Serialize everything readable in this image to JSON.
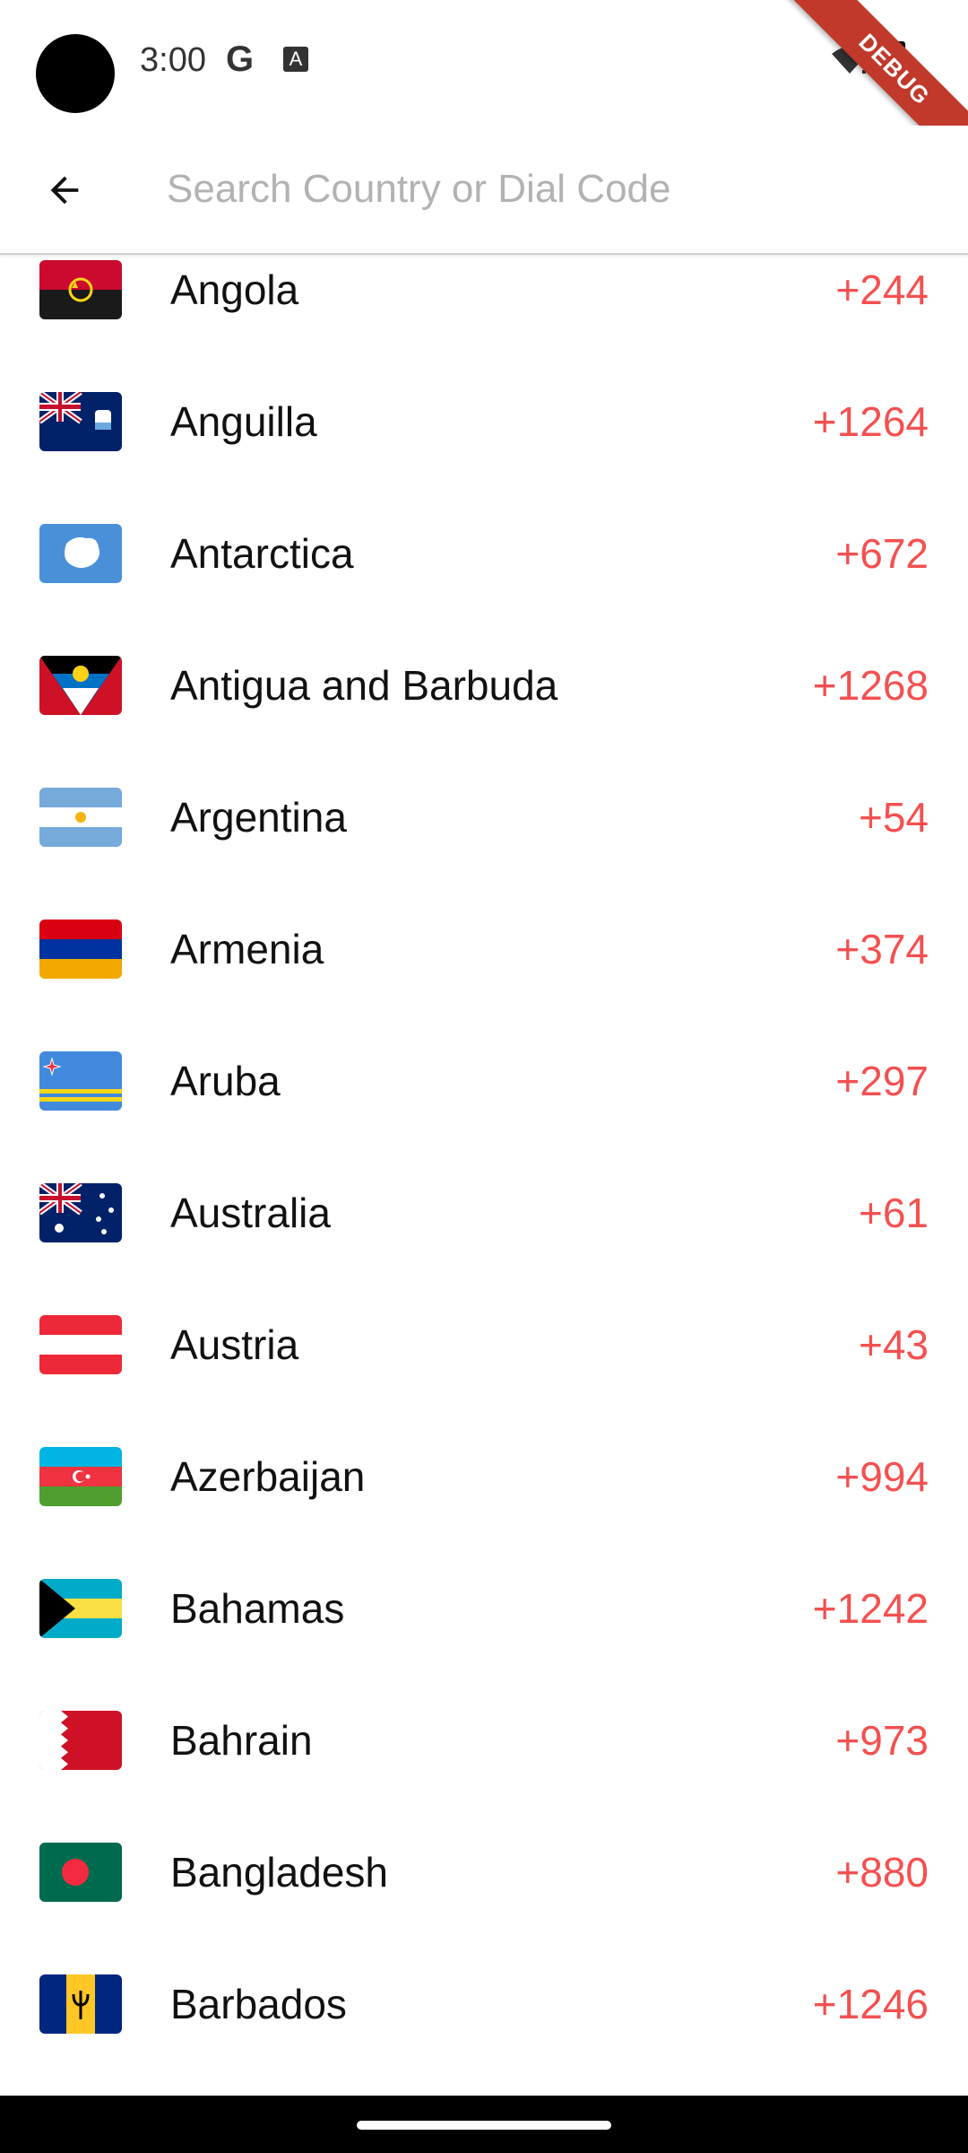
{
  "status_bar": {
    "time": "3:00",
    "icons": [
      "google-icon",
      "autofill-icon",
      "wifi-alert-icon",
      "battery-icon"
    ],
    "g_glyph": "G",
    "a_glyph": "A",
    "debug_label": "DEBUG"
  },
  "header": {
    "back_icon": "arrow-back-icon",
    "search_placeholder": "Search Country or Dial Code",
    "search_value": ""
  },
  "countries": [
    {
      "name": "Angola",
      "code": "+244",
      "flag": "angola"
    },
    {
      "name": "Anguilla",
      "code": "+1264",
      "flag": "anguilla"
    },
    {
      "name": "Antarctica",
      "code": "+672",
      "flag": "antarctica"
    },
    {
      "name": "Antigua and Barbuda",
      "code": "+1268",
      "flag": "antigua"
    },
    {
      "name": "Argentina",
      "code": "+54",
      "flag": "argentina"
    },
    {
      "name": "Armenia",
      "code": "+374",
      "flag": "armenia"
    },
    {
      "name": "Aruba",
      "code": "+297",
      "flag": "aruba"
    },
    {
      "name": "Australia",
      "code": "+61",
      "flag": "australia"
    },
    {
      "name": "Austria",
      "code": "+43",
      "flag": "austria"
    },
    {
      "name": "Azerbaijan",
      "code": "+994",
      "flag": "azerbaijan"
    },
    {
      "name": "Bahamas",
      "code": "+1242",
      "flag": "bahamas"
    },
    {
      "name": "Bahrain",
      "code": "+973",
      "flag": "bahrain"
    },
    {
      "name": "Bangladesh",
      "code": "+880",
      "flag": "bangladesh"
    },
    {
      "name": "Barbados",
      "code": "+1246",
      "flag": "barbados"
    }
  ],
  "colors": {
    "dial_code": "#f45050",
    "name": "#111111",
    "placeholder": "#b2b2b2"
  }
}
